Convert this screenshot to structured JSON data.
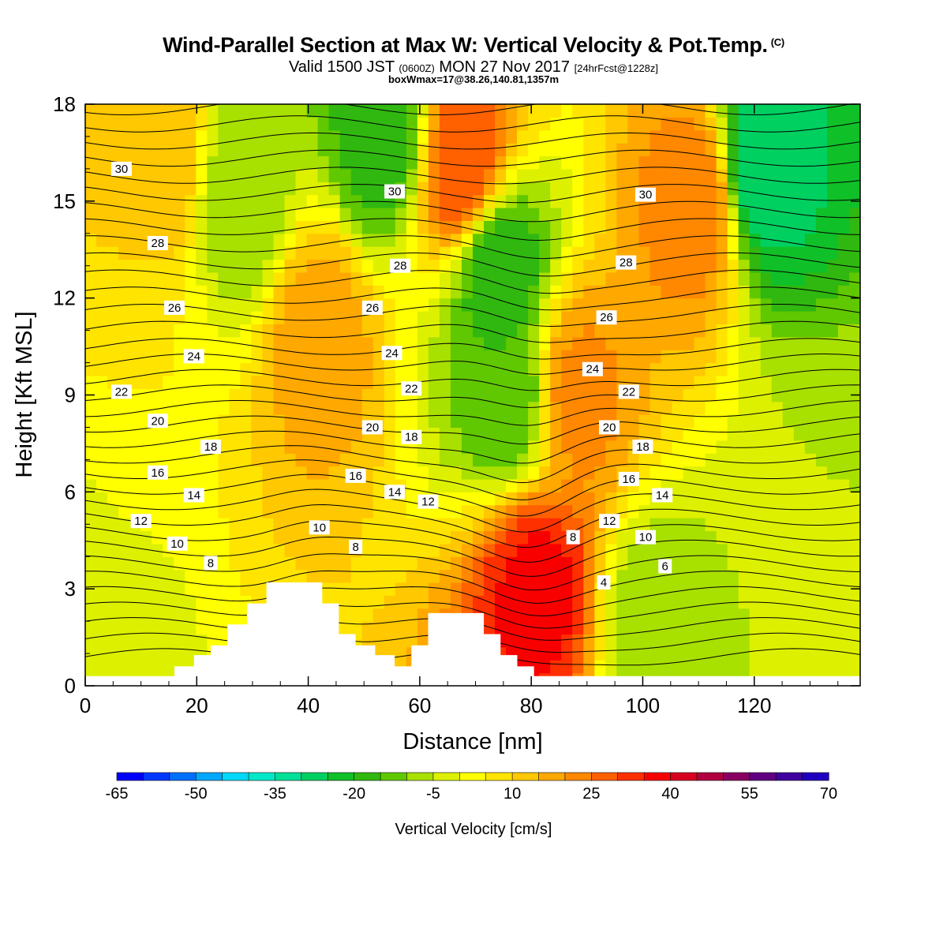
{
  "header": {
    "title": "Wind-Parallel Section at Max W: Vertical Velocity & Pot.Temp.",
    "copyright": "(C)",
    "valid_prefix": "Valid 1500 JST",
    "valid_utc": "(0600Z)",
    "valid_date": "MON 27 Nov 2017",
    "forecast": "[24hrFcst@1228z]",
    "box_info": "boxWmax=17@38.26,140.81,1357m"
  },
  "chart_data": {
    "type": "heatmap",
    "title": "Wind-Parallel Section at Max W: Vertical Velocity & Pot.Temp.",
    "xlabel": "Distance [nm]",
    "ylabel": "Height [Kft MSL]",
    "xlim": [
      0,
      139
    ],
    "ylim": [
      0,
      18
    ],
    "x_ticks": [
      0,
      20,
      40,
      60,
      80,
      100,
      120
    ],
    "y_ticks": [
      0,
      3,
      6,
      9,
      12,
      15,
      18
    ],
    "colorbar": {
      "title": "Vertical Velocity [cm/s]",
      "tick_labels": [
        "-65",
        "-50",
        "-35",
        "-20",
        "-5",
        "10",
        "25",
        "40",
        "55",
        "70"
      ],
      "bounds": [
        -65,
        70
      ],
      "step": 5,
      "colors": [
        "#0000ff",
        "#0038ff",
        "#0070ff",
        "#00a8ff",
        "#00d8f8",
        "#00e8c8",
        "#00e098",
        "#00d060",
        "#10c028",
        "#30b810",
        "#60c800",
        "#a8e000",
        "#ddf000",
        "#ffff00",
        "#ffe400",
        "#ffc800",
        "#ffa800",
        "#ff8800",
        "#ff6000",
        "#ff3000",
        "#f80000",
        "#d80020",
        "#b00040",
        "#880060",
        "#600080",
        "#4000a0",
        "#2000c0"
      ]
    },
    "field_samples": [
      {
        "x": 0,
        "y": 1.5,
        "w": -5
      },
      {
        "x": 10,
        "y": 10,
        "w": 5
      },
      {
        "x": 13,
        "y": 16,
        "w": 15
      },
      {
        "x": 28,
        "y": 15,
        "w": -10
      },
      {
        "x": 42,
        "y": 11,
        "w": 18
      },
      {
        "x": 53,
        "y": 17,
        "w": -18
      },
      {
        "x": 68,
        "y": 16,
        "w": 30
      },
      {
        "x": 74,
        "y": 13,
        "w": -20
      },
      {
        "x": 76,
        "y": 9,
        "w": -15
      },
      {
        "x": 81,
        "y": 3,
        "w": 37
      },
      {
        "x": 88,
        "y": 9,
        "w": 22
      },
      {
        "x": 102,
        "y": 2,
        "w": -8
      },
      {
        "x": 110,
        "y": 15,
        "w": 25
      },
      {
        "x": 121,
        "y": 16,
        "w": -30
      },
      {
        "x": 130,
        "y": 5,
        "w": -5
      }
    ],
    "theta_contours": {
      "interval": 1,
      "labels": [
        {
          "value": "30",
          "x": 6.5,
          "y": 16.0
        },
        {
          "value": "30",
          "x": 55.5,
          "y": 15.3
        },
        {
          "value": "30",
          "x": 100.5,
          "y": 15.2
        },
        {
          "value": "28",
          "x": 13,
          "y": 13.7
        },
        {
          "value": "28",
          "x": 56.5,
          "y": 13.0
        },
        {
          "value": "28",
          "x": 97,
          "y": 13.1
        },
        {
          "value": "26",
          "x": 16,
          "y": 11.7
        },
        {
          "value": "26",
          "x": 51.5,
          "y": 11.7
        },
        {
          "value": "26",
          "x": 93.5,
          "y": 11.4
        },
        {
          "value": "24",
          "x": 19.5,
          "y": 10.2
        },
        {
          "value": "24",
          "x": 55,
          "y": 10.3
        },
        {
          "value": "24",
          "x": 91,
          "y": 9.8
        },
        {
          "value": "22",
          "x": 6.5,
          "y": 9.1
        },
        {
          "value": "22",
          "x": 58.5,
          "y": 9.2
        },
        {
          "value": "22",
          "x": 97.5,
          "y": 9.1
        },
        {
          "value": "20",
          "x": 13,
          "y": 8.2
        },
        {
          "value": "20",
          "x": 51.5,
          "y": 8.0
        },
        {
          "value": "20",
          "x": 94,
          "y": 8.0
        },
        {
          "value": "18",
          "x": 22.5,
          "y": 7.4
        },
        {
          "value": "18",
          "x": 58.5,
          "y": 7.7
        },
        {
          "value": "18",
          "x": 100,
          "y": 7.4
        },
        {
          "value": "16",
          "x": 13,
          "y": 6.6
        },
        {
          "value": "16",
          "x": 48.5,
          "y": 6.5
        },
        {
          "value": "16",
          "x": 97.5,
          "y": 6.4
        },
        {
          "value": "14",
          "x": 19.5,
          "y": 5.9
        },
        {
          "value": "14",
          "x": 55.5,
          "y": 6.0
        },
        {
          "value": "14",
          "x": 103.5,
          "y": 5.9
        },
        {
          "value": "12",
          "x": 10,
          "y": 5.1
        },
        {
          "value": "12",
          "x": 61.5,
          "y": 5.7
        },
        {
          "value": "12",
          "x": 94,
          "y": 5.1
        },
        {
          "value": "10",
          "x": 16.5,
          "y": 4.4
        },
        {
          "value": "10",
          "x": 42,
          "y": 4.9
        },
        {
          "value": "10",
          "x": 100.5,
          "y": 4.6
        },
        {
          "value": "8",
          "x": 22.5,
          "y": 3.8
        },
        {
          "value": "8",
          "x": 48.5,
          "y": 4.3
        },
        {
          "value": "8",
          "x": 87.5,
          "y": 4.6
        },
        {
          "value": "6",
          "x": 104,
          "y": 3.7
        },
        {
          "value": "4",
          "x": 93,
          "y": 3.2
        }
      ]
    },
    "terrain": {
      "fill": "#ffffff",
      "profile": [
        [
          0,
          0.3
        ],
        [
          16,
          0.3
        ],
        [
          16,
          0.6
        ],
        [
          19.5,
          0.6
        ],
        [
          19.5,
          0.95
        ],
        [
          22.5,
          0.95
        ],
        [
          22.5,
          1.25
        ],
        [
          25.5,
          1.25
        ],
        [
          25.5,
          1.9
        ],
        [
          29,
          1.9
        ],
        [
          29,
          2.55
        ],
        [
          32.5,
          2.55
        ],
        [
          32.5,
          3.2
        ],
        [
          42.5,
          3.2
        ],
        [
          42.5,
          2.55
        ],
        [
          45.5,
          2.55
        ],
        [
          45.5,
          1.6
        ],
        [
          48.5,
          1.6
        ],
        [
          48.5,
          1.25
        ],
        [
          52,
          1.25
        ],
        [
          52,
          0.95
        ],
        [
          55.5,
          0.95
        ],
        [
          55.5,
          0.6
        ],
        [
          58.5,
          0.6
        ],
        [
          58.5,
          1.25
        ],
        [
          61.5,
          1.25
        ],
        [
          61.5,
          2.25
        ],
        [
          71.5,
          2.25
        ],
        [
          71.5,
          1.6
        ],
        [
          74.5,
          1.6
        ],
        [
          74.5,
          0.95
        ],
        [
          77.5,
          0.95
        ],
        [
          77.5,
          0.6
        ],
        [
          80.5,
          0.6
        ],
        [
          80.5,
          0.3
        ],
        [
          139,
          0.3
        ]
      ]
    }
  }
}
